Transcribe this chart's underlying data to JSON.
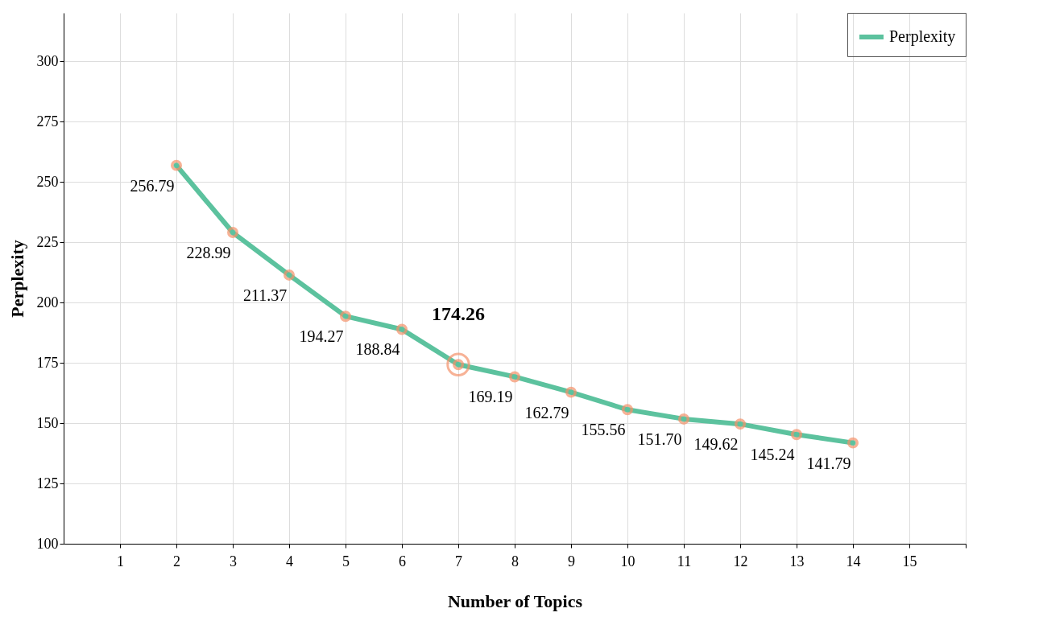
{
  "chart_data": {
    "type": "line",
    "xlabel": "Number of Topics",
    "ylabel": "Perplexity",
    "x": [
      2,
      3,
      4,
      5,
      6,
      7,
      8,
      9,
      10,
      11,
      12,
      13,
      14
    ],
    "series": [
      {
        "name": "Perplexity",
        "color": "#5cc29e",
        "values": [
          256.79,
          228.99,
          211.37,
          194.27,
          188.84,
          174.26,
          169.19,
          162.79,
          155.56,
          151.7,
          149.62,
          145.24,
          141.79
        ],
        "value_labels": [
          "256.79",
          "228.99",
          "211.37",
          "194.27",
          "188.84",
          null,
          "169.19",
          "162.79",
          "155.56",
          "151.70",
          "149.62",
          "145.24",
          "141.79"
        ]
      }
    ],
    "annotations": [
      {
        "text": "174.26",
        "x": 7,
        "y": 174.26
      }
    ],
    "xlim": [
      0,
      16
    ],
    "xticks": [
      1,
      2,
      3,
      4,
      5,
      6,
      7,
      8,
      9,
      10,
      11,
      12,
      13,
      14,
      15,
      {
        "value": 16,
        "label": null
      }
    ],
    "ylim": [
      100,
      320
    ],
    "yticks": [
      100,
      125,
      150,
      175,
      200,
      225,
      250,
      275,
      300
    ],
    "grid": true,
    "legend": "top right",
    "marker": "circle",
    "line_style": "solid"
  }
}
